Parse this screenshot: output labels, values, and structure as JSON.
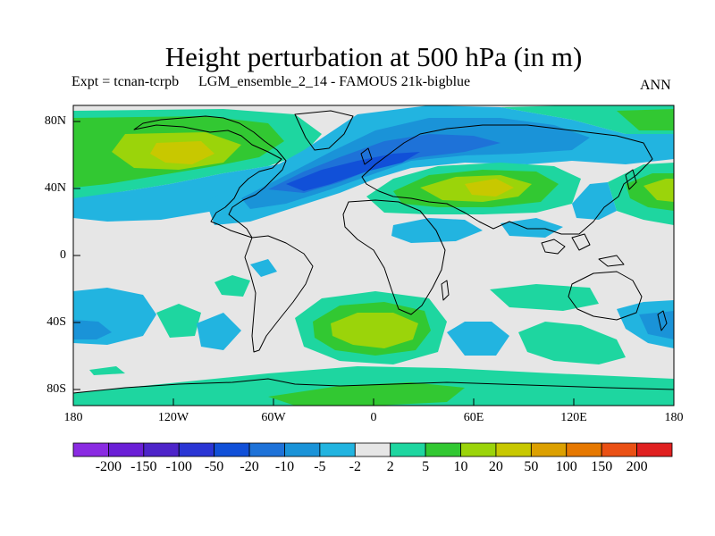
{
  "map": {
    "title": "Height perturbation at 500 hPa (in m)",
    "experiment": "Expt = tcnan-tcrpb",
    "run": "LGM_ensemble_2_14 - FAMOUS 21k-bigblue",
    "season": "ANN",
    "lat_labels": [
      "80N",
      "40N",
      "0",
      "40S",
      "80S"
    ],
    "lon_labels": [
      "180",
      "120W",
      "60W",
      "0",
      "60E",
      "120E",
      "180"
    ],
    "colorbar": {
      "colors": [
        "#8a2be2",
        "#6a1fd6",
        "#4d24c9",
        "#2a35d4",
        "#1150d8",
        "#1e72d8",
        "#1a93d8",
        "#22b4e0",
        "#e6e6e6",
        "#1ed6a0",
        "#32c832",
        "#9bd40a",
        "#c8c800",
        "#dca000",
        "#e67800",
        "#ea5014",
        "#e02020"
      ],
      "labels": [
        "-200",
        "-150",
        "-100",
        "-50",
        "-20",
        "-10",
        "-5",
        "-2",
        "2",
        "5",
        "10",
        "20",
        "50",
        "100",
        "150",
        "200"
      ]
    },
    "contour_colors": {
      "background": "#e6e6e6",
      "neg_2": "#22b4e0",
      "neg_5": "#1a93d8",
      "neg_10": "#1e72d8",
      "neg_20": "#1150d8",
      "pos_2": "#1ed6a0",
      "pos_5": "#32c832",
      "pos_10": "#9bd40a",
      "pos_20": "#c8c800"
    }
  }
}
